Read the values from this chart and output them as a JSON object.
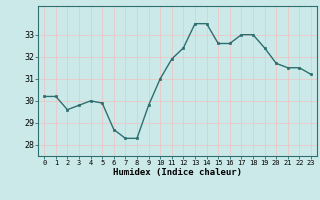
{
  "x": [
    0,
    1,
    2,
    3,
    4,
    5,
    6,
    7,
    8,
    9,
    10,
    11,
    12,
    13,
    14,
    15,
    16,
    17,
    18,
    19,
    20,
    21,
    22,
    23
  ],
  "y": [
    30.2,
    30.2,
    29.6,
    29.8,
    30.0,
    29.9,
    28.7,
    28.3,
    28.3,
    29.8,
    31.0,
    31.9,
    32.4,
    33.5,
    33.5,
    32.6,
    32.6,
    33.0,
    33.0,
    32.4,
    31.7,
    31.5,
    31.5,
    31.2
  ],
  "xlabel": "Humidex (Indice chaleur)",
  "ylim": [
    27.5,
    34.3
  ],
  "yticks": [
    28,
    29,
    30,
    31,
    32,
    33
  ],
  "xticks": [
    0,
    1,
    2,
    3,
    4,
    5,
    6,
    7,
    8,
    9,
    10,
    11,
    12,
    13,
    14,
    15,
    16,
    17,
    18,
    19,
    20,
    21,
    22,
    23
  ],
  "xtick_labels": [
    "0",
    "1",
    "2",
    "3",
    "4",
    "5",
    "6",
    "7",
    "8",
    "9",
    "10",
    "11",
    "12",
    "13",
    "14",
    "15",
    "16",
    "17",
    "18",
    "19",
    "20",
    "21",
    "22",
    "23"
  ],
  "line_color": "#2d6e6e",
  "marker_color": "#2d6e6e",
  "bg_color": "#cce9e9",
  "grid_color": "#e8f8f8",
  "title": ""
}
